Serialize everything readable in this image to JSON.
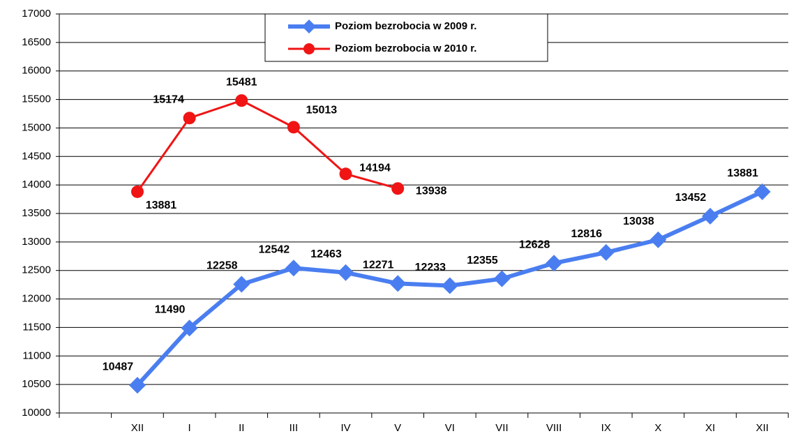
{
  "chart_data": {
    "type": "line",
    "categories": [
      null,
      "XII",
      "I",
      "II",
      "III",
      "IV",
      "V",
      "VI",
      "VII",
      "VIII",
      "IX",
      "X",
      "XI",
      "XII"
    ],
    "series": [
      {
        "name": "Poziom  bezrobocia w 2009 r.",
        "color": "#4a7ef0",
        "marker": "diamond",
        "values": [
          null,
          10487,
          11490,
          12258,
          12542,
          12463,
          12271,
          12233,
          12355,
          12628,
          12816,
          13038,
          13452,
          13881
        ]
      },
      {
        "name": "Poziom  bezrobocia w 2010 r.",
        "color": "#f01414",
        "marker": "circle",
        "values": [
          null,
          13881,
          15174,
          15481,
          15013,
          14194,
          13938,
          null,
          null,
          null,
          null,
          null,
          null,
          null
        ]
      }
    ],
    "ylim": [
      10000,
      17000
    ],
    "yticks": [
      10000,
      10500,
      11000,
      11500,
      12000,
      12500,
      13000,
      13500,
      14000,
      14500,
      15000,
      15500,
      16000,
      16500,
      17000
    ],
    "grid": true,
    "legend": "top"
  }
}
